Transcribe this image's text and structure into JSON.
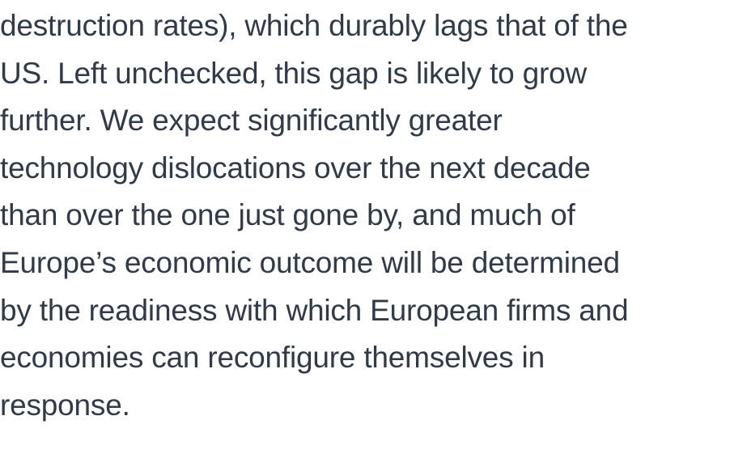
{
  "paragraph": {
    "lines": [
      "destruction rates), which durably lags that of the",
      "US. Left unchecked, this gap is likely to grow",
      "further. We expect significantly greater",
      "technology dislocations over the next decade",
      "than over the one just gone by, and much of",
      "Europe’s economic outcome will be determined",
      "by the readiness with which European firms and",
      "economies can reconfigure themselves in",
      "response."
    ]
  }
}
